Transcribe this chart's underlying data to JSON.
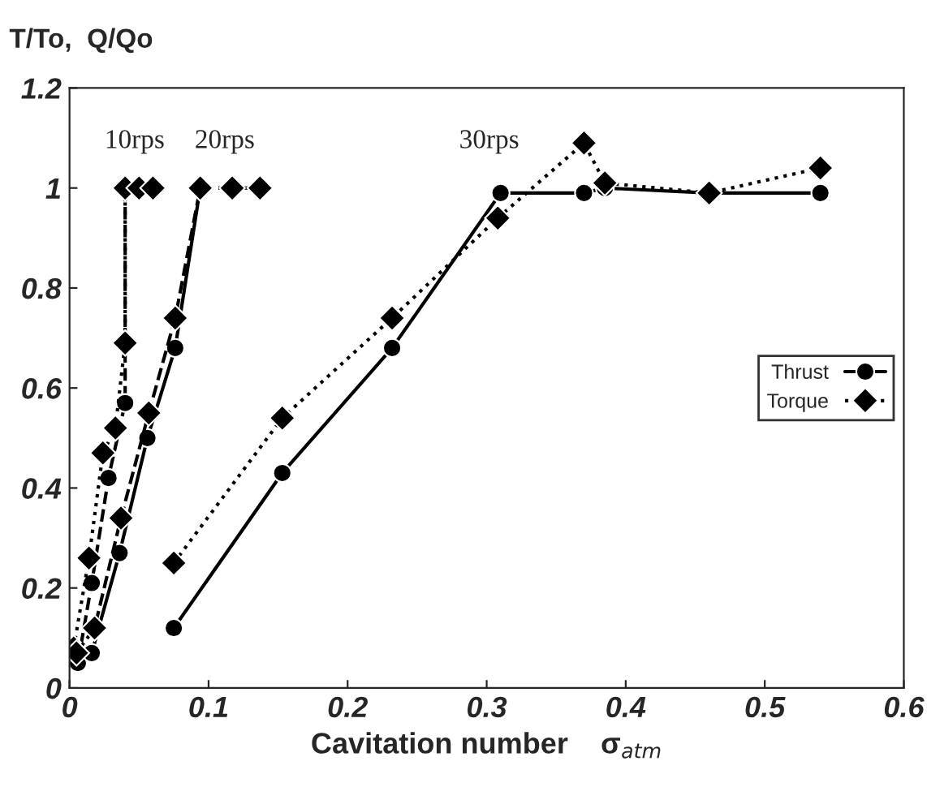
{
  "chart_data": {
    "type": "line",
    "xlabel": "Cavitation number    σ$_{atm}$",
    "ylabel": "T/To,  Q/Qo",
    "xlim": [
      0,
      0.6
    ],
    "xticks": [
      0,
      0.1,
      0.2,
      0.3,
      0.4,
      0.5,
      0.6
    ],
    "ylim": [
      0,
      1.2
    ],
    "yticks": [
      0,
      0.2,
      0.4,
      0.6,
      0.8,
      1,
      1.2
    ],
    "grid": false,
    "legend": "right",
    "annotations": [
      "10rps",
      "20rps",
      "30rps"
    ],
    "series": [
      {
        "x": [
          0.006,
          0.016,
          0.028,
          0.04,
          0.04
        ],
        "values": [
          0.05,
          0.21,
          0.42,
          0.57,
          1.0
        ],
        "color": "#000000",
        "marker": "circle",
        "line_style": "dashed"
      },
      {
        "x": [
          0.003,
          0.014,
          0.024,
          0.033,
          0.04,
          0.04,
          0.05,
          0.06
        ],
        "values": [
          0.08,
          0.26,
          0.47,
          0.52,
          0.69,
          1.0,
          1.0,
          1.0
        ],
        "color": "#000000",
        "marker": "diamond",
        "line_style": "dotted"
      },
      {
        "x": [
          0.016,
          0.036,
          0.056,
          0.076,
          0.094
        ],
        "values": [
          0.07,
          0.27,
          0.5,
          0.68,
          1.0
        ],
        "color": "#000000",
        "marker": "circle",
        "line_style": "solid"
      },
      {
        "x": [
          0.005,
          0.018,
          0.037,
          0.057,
          0.076,
          0.094,
          0.117,
          0.137
        ],
        "values": [
          0.07,
          0.12,
          0.34,
          0.55,
          0.74,
          1.0,
          1.0,
          1.0
        ],
        "color": "#000000",
        "marker": "diamond",
        "line_style": "dashed"
      },
      {
        "name": "Thrust",
        "x": [
          0.075,
          0.153,
          0.232,
          0.31,
          0.37,
          0.385,
          0.46,
          0.54
        ],
        "values": [
          0.12,
          0.43,
          0.68,
          0.99,
          0.99,
          1.0,
          0.99,
          0.99
        ],
        "color": "#000000",
        "marker": "circle",
        "line_style": "solid"
      },
      {
        "name": "Torque",
        "x": [
          0.075,
          0.153,
          0.232,
          0.308,
          0.37,
          0.385,
          0.46,
          0.54
        ],
        "values": [
          0.25,
          0.54,
          0.74,
          0.94,
          1.09,
          1.01,
          0.99,
          1.04
        ],
        "color": "#000000",
        "marker": "diamond",
        "line_style": "dotted"
      }
    ]
  }
}
